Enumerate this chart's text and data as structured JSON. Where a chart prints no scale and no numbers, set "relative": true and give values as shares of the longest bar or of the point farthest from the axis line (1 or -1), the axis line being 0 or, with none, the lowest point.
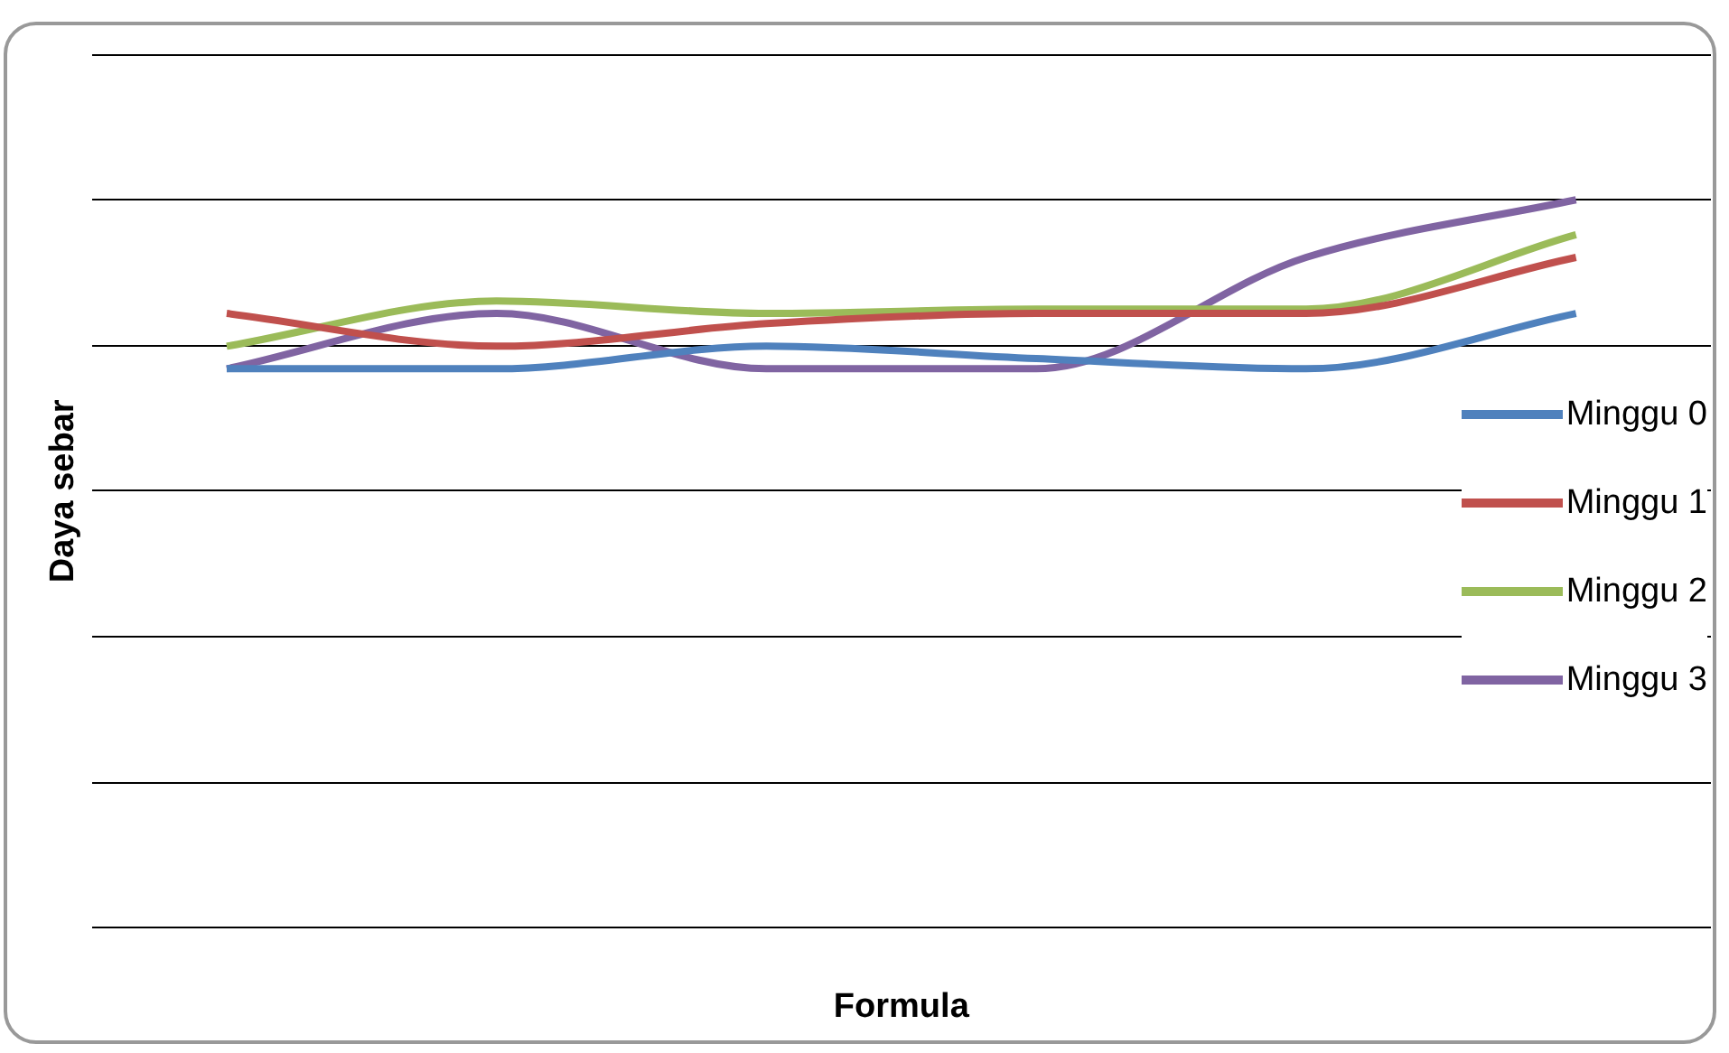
{
  "chart_data": {
    "type": "line",
    "xlabel": "Formula",
    "ylabel": "Daya sebar",
    "relative": true,
    "grid": "y",
    "legend": "right",
    "marker": "none",
    "line_style": "solid",
    "categories": [
      null,
      null,
      null,
      null,
      null,
      null
    ],
    "series": [
      {
        "name": "Minggu 0",
        "color": "#4f81bd",
        "values": [
          0.768,
          0.768,
          0.799,
          0.782,
          0.768,
          0.844
        ]
      },
      {
        "name": "Minggu 1",
        "color": "#c0504d",
        "values": [
          0.844,
          0.799,
          0.83,
          0.844,
          0.844,
          0.921
        ]
      },
      {
        "name": "Minggu 2",
        "color": "#9bbb59",
        "values": [
          0.799,
          0.861,
          0.844,
          0.85,
          0.85,
          0.952
        ]
      },
      {
        "name": "Minggu 3",
        "color": "#8064a2",
        "values": [
          0.768,
          0.844,
          0.768,
          0.768,
          0.921,
          1
        ]
      }
    ]
  }
}
